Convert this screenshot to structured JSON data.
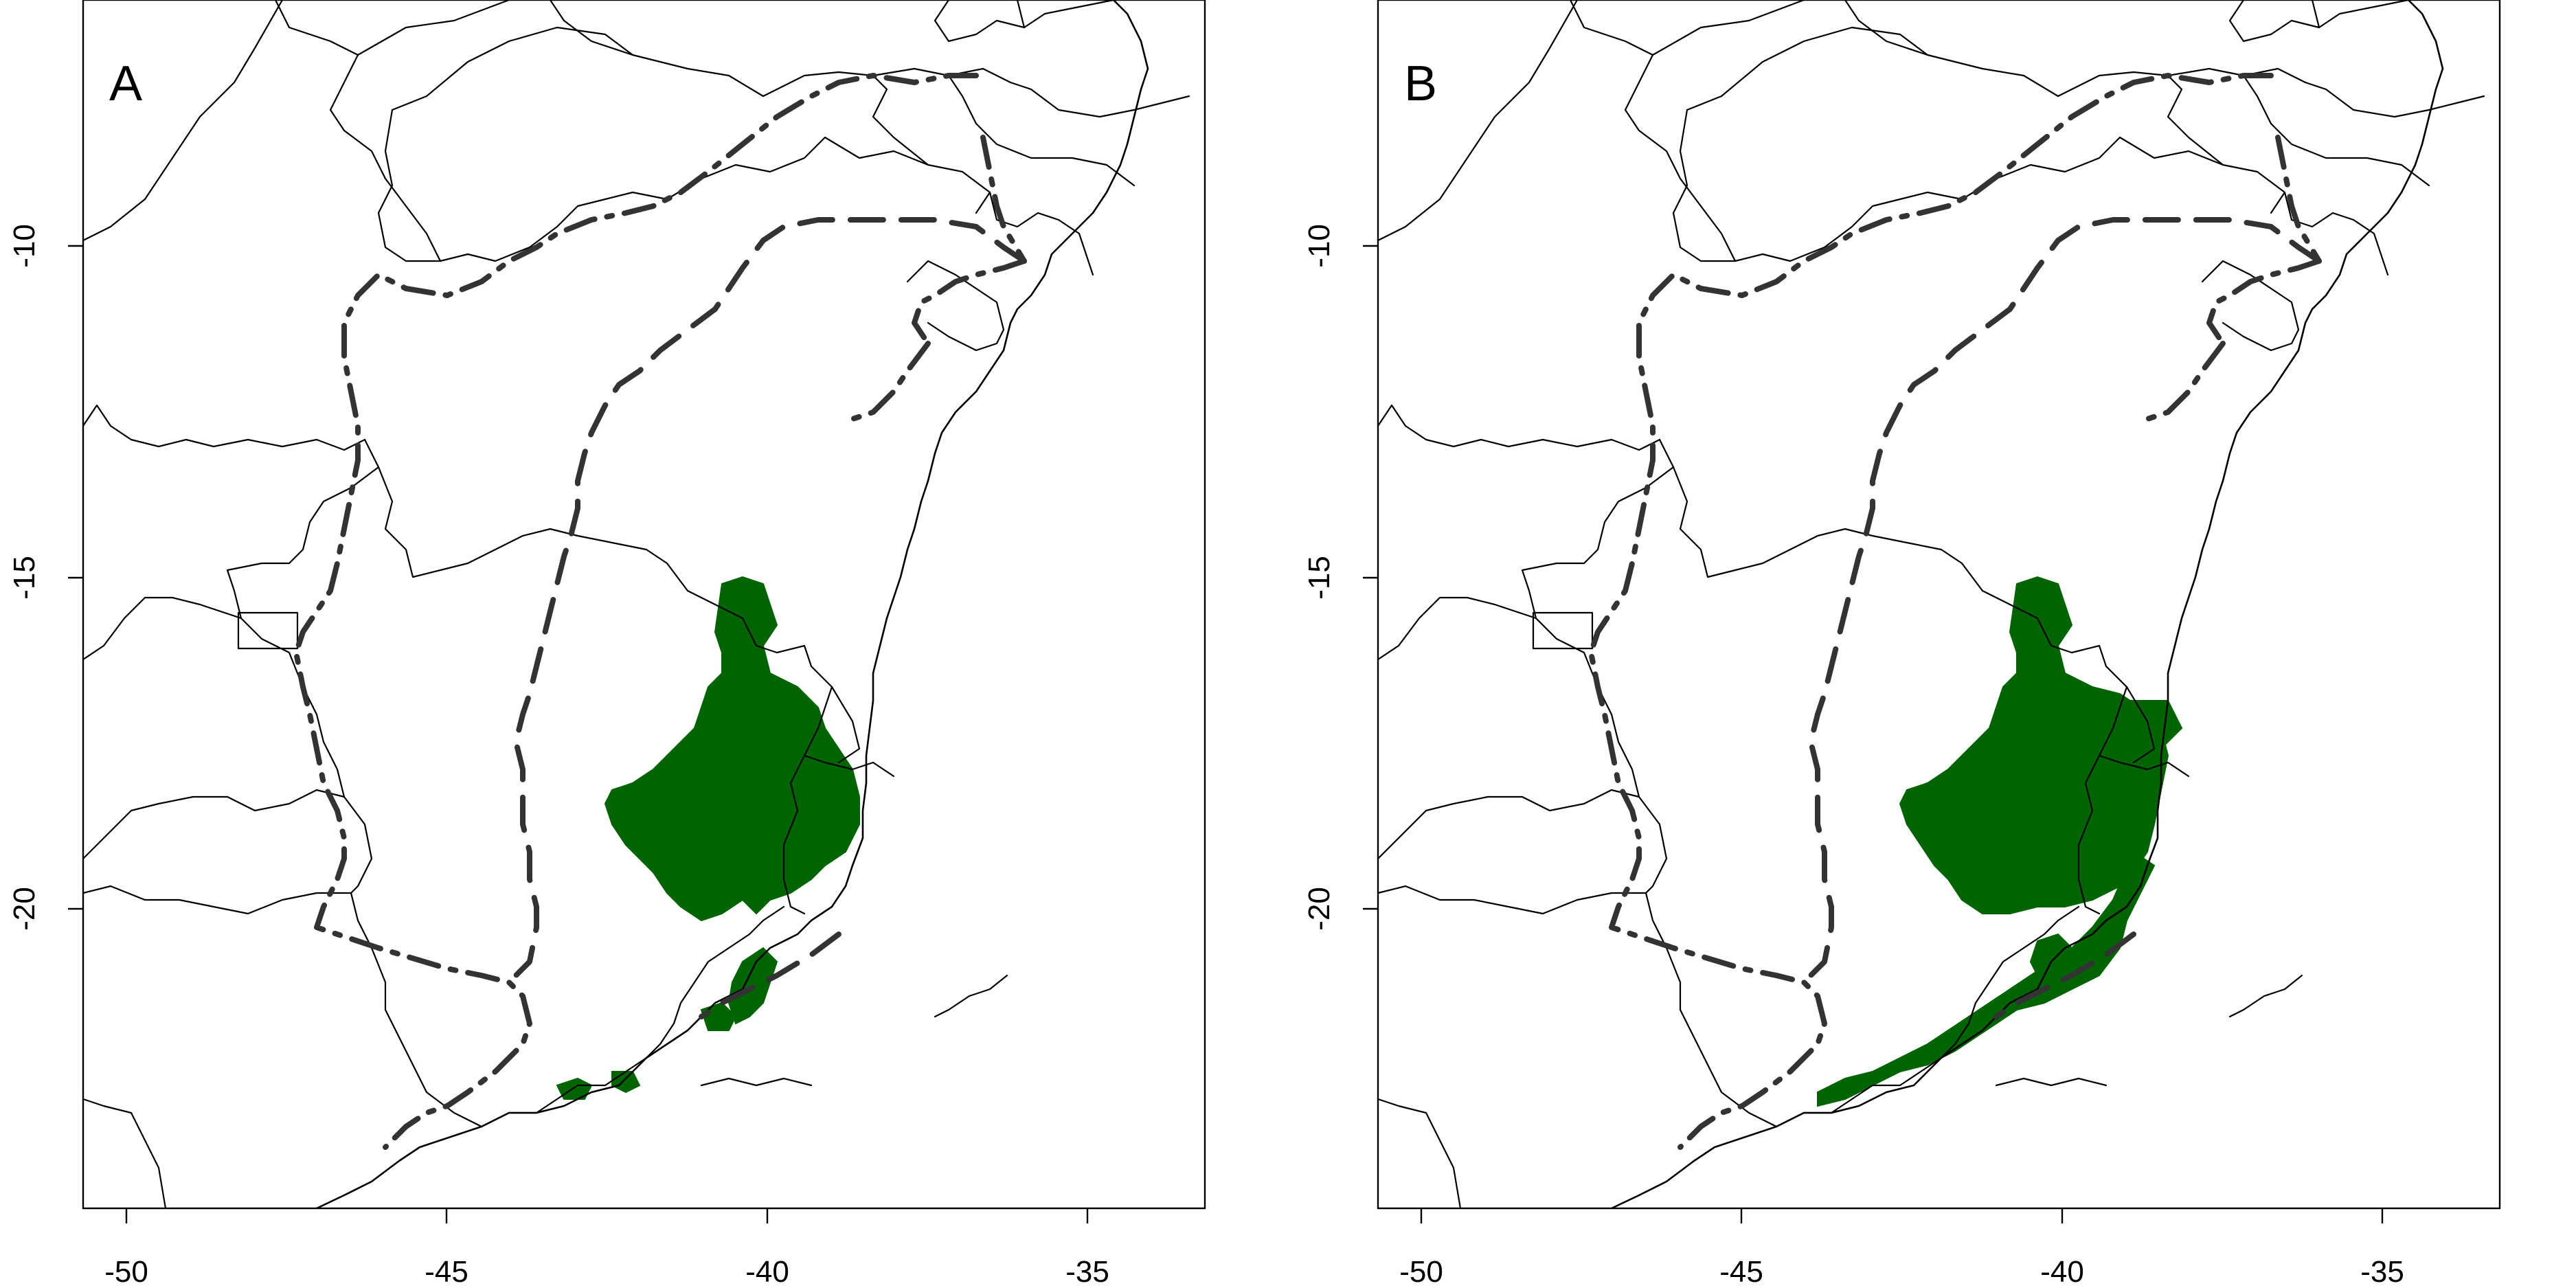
{
  "figure": {
    "panels": [
      {
        "label": "A",
        "area_color": "#006400"
      },
      {
        "label": "B",
        "area_color": "#006400"
      }
    ],
    "x_axis": {
      "ticks": [
        -50,
        -45,
        -40,
        -35
      ],
      "tick_labels": [
        "-50",
        "-45",
        "-40",
        "-35"
      ],
      "range": [
        -50.7,
        -33.2
      ]
    },
    "y_axis": {
      "ticks": [
        -10,
        -15,
        -20
      ],
      "tick_labels": [
        "-10",
        "-15",
        "-20"
      ],
      "range": [
        -24.6,
        -6.3
      ]
    },
    "colors": {
      "outline": "#000000",
      "biome_boundary": "#333333",
      "suitable_area": "#006400"
    }
  }
}
